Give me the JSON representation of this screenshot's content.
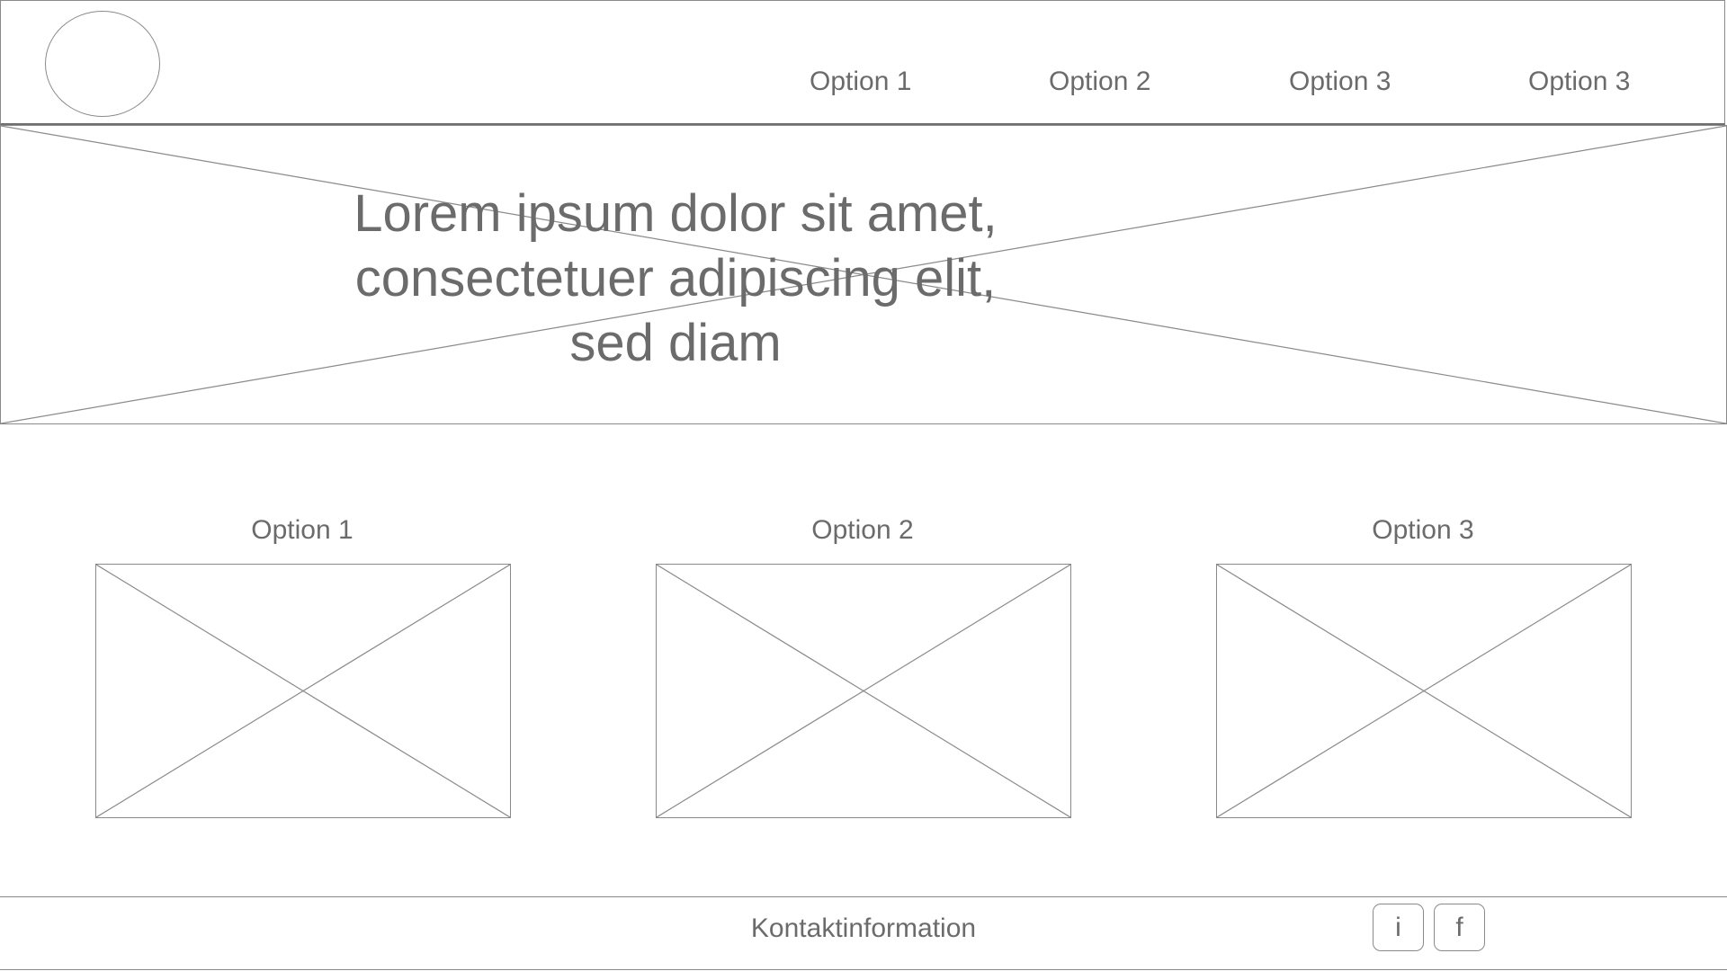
{
  "header": {
    "nav": [
      {
        "label": "Option 1"
      },
      {
        "label": "Option 2"
      },
      {
        "label": "Option 3"
      },
      {
        "label": "Option 3"
      }
    ]
  },
  "hero": {
    "text": "Lorem ipsum dolor sit amet,\nconsectetuer adipiscing elit,\nsed diam"
  },
  "cards": [
    {
      "label": "Option 1"
    },
    {
      "label": "Option 2"
    },
    {
      "label": "Option 3"
    }
  ],
  "footer": {
    "contact": "Kontaktinformation",
    "social": [
      {
        "label": "i",
        "icon": "info-icon"
      },
      {
        "label": "f",
        "icon": "facebook-icon"
      }
    ]
  },
  "colors": {
    "line": "#8a8a8a",
    "text": "#6b6b6b",
    "background": "#ffffff"
  }
}
